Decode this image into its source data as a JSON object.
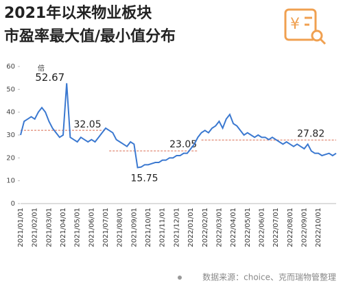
{
  "chart_data": {
    "type": "line",
    "title": "2021年以来物业板块",
    "subtitle": "市盈率最大值/最小值分布",
    "unit": "倍",
    "source": "数据来源：choice、克而瑞物管整理",
    "categories": [
      "2021/01/01",
      null,
      null,
      null,
      "2021/02/01",
      null,
      null,
      null,
      "2021/03/01",
      null,
      null,
      null,
      "2021/04/01",
      null,
      null,
      null,
      "2021/05/01",
      null,
      null,
      null,
      "2021/06/01",
      null,
      null,
      null,
      "2021/07/01",
      null,
      null,
      null,
      "2021/08/01",
      null,
      null,
      null,
      "2021/09/01",
      null,
      null,
      null,
      "2021/10/01",
      null,
      null,
      null,
      "2021/11/01",
      null,
      null,
      null,
      "2021/12/01",
      null,
      null,
      null,
      "2022/01/01",
      null,
      null,
      null,
      "2022/02/01",
      null,
      null,
      null,
      "2022/03/01",
      null,
      null,
      null,
      "2022/04/01",
      null,
      null,
      null,
      "2022/05/01",
      null,
      null,
      null,
      "2022/06/01",
      null,
      null,
      null,
      "2022/07/01",
      null,
      null,
      null,
      "2022/08/01",
      null,
      null,
      null,
      "2022/09/01",
      null,
      null,
      null,
      "2022/10/01",
      null,
      null,
      null,
      null,
      null
    ],
    "values": [
      30,
      36,
      37,
      38,
      37,
      40,
      42,
      40,
      36,
      33,
      31,
      29,
      30,
      52.67,
      29,
      28,
      27,
      29,
      28,
      27,
      28,
      27,
      29,
      31,
      33,
      32,
      31,
      28,
      27,
      26,
      25,
      27,
      26,
      15.75,
      16,
      17,
      17,
      17.5,
      18,
      18,
      19,
      19,
      20,
      20,
      21,
      21,
      22,
      22,
      24,
      26,
      29,
      31,
      32,
      31,
      33,
      34,
      36,
      33,
      37,
      39,
      35,
      34,
      32,
      30,
      31,
      30,
      29,
      30,
      29,
      29,
      28,
      29,
      28,
      27,
      26,
      27,
      26,
      25,
      26,
      25,
      24,
      26,
      23,
      22,
      22,
      21,
      21.5,
      22,
      21,
      22
    ],
    "color": "#3a78d0",
    "ylim": [
      0,
      60
    ],
    "yticks": [
      0,
      10,
      20,
      30,
      40,
      50,
      60
    ],
    "reference_lines": [
      {
        "value": 32.05,
        "color": "#d9694f"
      },
      {
        "value": 23.05,
        "color": "#d9694f"
      },
      {
        "value": 27.82,
        "color": "#d9694f"
      }
    ]
  }
}
